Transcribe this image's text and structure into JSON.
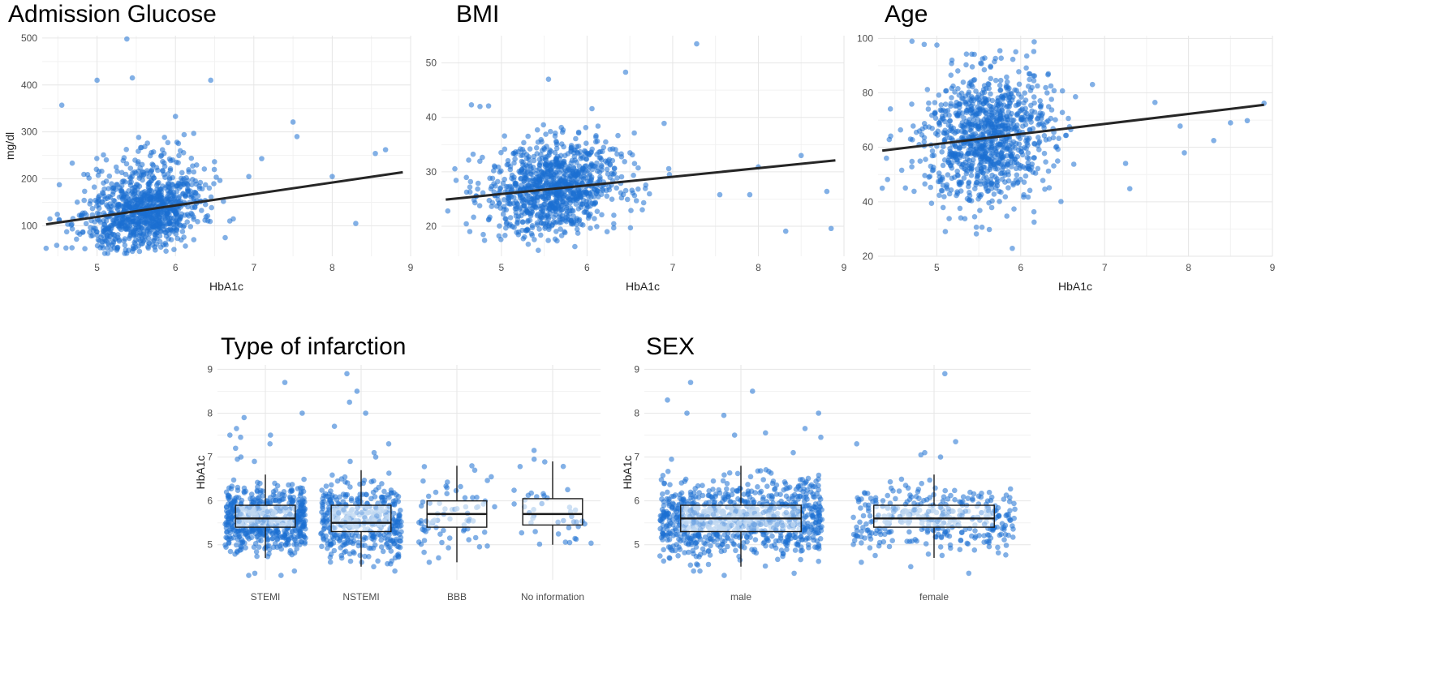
{
  "colors": {
    "point": "#1c6fd1",
    "point_light": "#9fc3ea",
    "fit": "#262626",
    "box": "#1a1a1a"
  },
  "chart_data": [
    {
      "id": "glucose",
      "type": "scatter",
      "title": "Admission Glucose",
      "xlabel": "HbA1c",
      "ylabel": "mg/dl",
      "xlim": [
        4.3,
        9.0
      ],
      "ylim": [
        35,
        505
      ],
      "xticks": [
        5,
        6,
        7,
        8,
        9
      ],
      "yticks": [
        100,
        200,
        300,
        400,
        500
      ],
      "xtick_labels": [
        "5",
        "6",
        "7",
        "8",
        "9"
      ],
      "ytick_labels": [
        "100",
        "200",
        "300",
        "400",
        "500"
      ],
      "fit": {
        "x": [
          4.35,
          8.9
        ],
        "y": [
          103,
          214
        ]
      },
      "cluster": {
        "n": 1000,
        "x_center": 5.6,
        "x_spread": 0.38,
        "y_center": 125,
        "y_spread": 38,
        "y_min": 40
      },
      "outliers": [
        {
          "x": 5.38,
          "y": 498
        },
        {
          "x": 5.45,
          "y": 415
        },
        {
          "x": 5.0,
          "y": 410
        },
        {
          "x": 6.45,
          "y": 410
        },
        {
          "x": 4.55,
          "y": 357
        },
        {
          "x": 7.5,
          "y": 321
        },
        {
          "x": 6.0,
          "y": 333
        },
        {
          "x": 8.68,
          "y": 262
        },
        {
          "x": 8.55,
          "y": 254
        },
        {
          "x": 8.3,
          "y": 105
        },
        {
          "x": 8.0,
          "y": 205
        },
        {
          "x": 7.1,
          "y": 243
        },
        {
          "x": 4.35,
          "y": 52
        },
        {
          "x": 7.55,
          "y": 290
        }
      ]
    },
    {
      "id": "bmi",
      "type": "scatter",
      "title": "BMI",
      "xlabel": "HbA1c",
      "ylabel": "",
      "xlim": [
        4.3,
        9.0
      ],
      "ylim": [
        14.5,
        55
      ],
      "xticks": [
        5,
        6,
        7,
        8,
        9
      ],
      "yticks": [
        20,
        30,
        40,
        50
      ],
      "xtick_labels": [
        "5",
        "6",
        "7",
        "8",
        "9"
      ],
      "ytick_labels": [
        "20",
        "30",
        "40",
        "50"
      ],
      "fit": {
        "x": [
          4.35,
          8.9
        ],
        "y": [
          24.9,
          32.1
        ]
      },
      "cluster": {
        "n": 1000,
        "x_center": 5.6,
        "x_spread": 0.38,
        "y_center": 27,
        "y_spread": 4.2,
        "y_min": 15.5
      },
      "outliers": [
        {
          "x": 7.28,
          "y": 53.5
        },
        {
          "x": 6.45,
          "y": 48.3
        },
        {
          "x": 5.55,
          "y": 47.0
        },
        {
          "x": 4.65,
          "y": 42.3
        },
        {
          "x": 4.75,
          "y": 42.0
        },
        {
          "x": 4.85,
          "y": 42.1
        },
        {
          "x": 8.32,
          "y": 19.1
        },
        {
          "x": 8.85,
          "y": 19.6
        },
        {
          "x": 8.8,
          "y": 26.4
        },
        {
          "x": 8.5,
          "y": 33.0
        },
        {
          "x": 7.55,
          "y": 25.8
        },
        {
          "x": 7.9,
          "y": 25.8
        },
        {
          "x": 8.0,
          "y": 30.9
        },
        {
          "x": 6.9,
          "y": 38.9
        }
      ]
    },
    {
      "id": "age",
      "type": "scatter",
      "title": "Age",
      "xlabel": "HbA1c",
      "ylabel": "",
      "xlim": [
        4.3,
        9.0
      ],
      "ylim": [
        20,
        101
      ],
      "xticks": [
        5,
        6,
        7,
        8,
        9
      ],
      "yticks": [
        20,
        40,
        60,
        80,
        100
      ],
      "xtick_labels": [
        "5",
        "6",
        "7",
        "8",
        "9"
      ],
      "ytick_labels": [
        "20",
        "40",
        "60",
        "80",
        "100"
      ],
      "fit": {
        "x": [
          4.35,
          8.9
        ],
        "y": [
          58.8,
          75.6
        ]
      },
      "cluster": {
        "n": 1000,
        "x_center": 5.6,
        "x_spread": 0.38,
        "y_center": 64,
        "y_spread": 12,
        "y_min": 23
      },
      "outliers": [
        {
          "x": 4.85,
          "y": 97.8
        },
        {
          "x": 8.9,
          "y": 76.2
        },
        {
          "x": 8.7,
          "y": 69.8
        },
        {
          "x": 8.5,
          "y": 69.0
        },
        {
          "x": 8.3,
          "y": 62.5
        },
        {
          "x": 7.95,
          "y": 58.0
        },
        {
          "x": 7.3,
          "y": 44.8
        },
        {
          "x": 7.25,
          "y": 54.1
        },
        {
          "x": 5.9,
          "y": 22.9
        },
        {
          "x": 7.9,
          "y": 67.8
        },
        {
          "x": 7.6,
          "y": 76.5
        },
        {
          "x": 4.4,
          "y": 56.0
        },
        {
          "x": 4.35,
          "y": 45.0
        }
      ]
    },
    {
      "id": "infarction",
      "type": "box",
      "title": "Type of infarction",
      "xlabel": "",
      "ylabel": "HbA1c",
      "ylim": [
        4.2,
        9.1
      ],
      "yticks": [
        5,
        6,
        7,
        8,
        9
      ],
      "ytick_labels": [
        "5",
        "6",
        "7",
        "8",
        "9"
      ],
      "categories": [
        "STEMI",
        "NSTEMI",
        "BBB",
        "No information"
      ],
      "boxes": [
        {
          "q1": 5.4,
          "median": 5.6,
          "q3": 5.9,
          "lower": 4.7,
          "upper": 6.6,
          "n": 620,
          "outliers": [
            8.7,
            8.0,
            7.9,
            7.65,
            7.5,
            7.5,
            7.45,
            7.3,
            7.2,
            7.0,
            6.95,
            6.9,
            4.4,
            4.3,
            4.35,
            4.3
          ]
        },
        {
          "q1": 5.3,
          "median": 5.5,
          "q3": 5.9,
          "lower": 4.5,
          "upper": 6.7,
          "n": 420,
          "outliers": [
            8.9,
            8.5,
            8.25,
            8.0,
            7.7,
            7.3,
            7.1,
            7.0,
            6.9,
            4.4,
            4.5
          ]
        },
        {
          "q1": 5.4,
          "median": 5.7,
          "q3": 6.0,
          "lower": 4.6,
          "upper": 6.8,
          "n": 70,
          "outliers": [
            6.8,
            6.7,
            4.6,
            4.7
          ]
        },
        {
          "q1": 5.45,
          "median": 5.7,
          "q3": 6.05,
          "lower": 5.0,
          "upper": 6.9,
          "n": 40,
          "outliers": [
            7.15,
            6.95,
            5.05
          ]
        }
      ]
    },
    {
      "id": "sex",
      "type": "box",
      "title": "SEX",
      "xlabel": "",
      "ylabel": "HbA1c",
      "ylim": [
        4.2,
        9.1
      ],
      "yticks": [
        5,
        6,
        7,
        8,
        9
      ],
      "ytick_labels": [
        "5",
        "6",
        "7",
        "8",
        "9"
      ],
      "categories": [
        "male",
        "female"
      ],
      "boxes": [
        {
          "q1": 5.3,
          "median": 5.6,
          "q3": 5.9,
          "lower": 4.5,
          "upper": 6.8,
          "n": 900,
          "outliers": [
            8.7,
            8.5,
            8.3,
            8.0,
            8.0,
            7.95,
            7.65,
            7.55,
            7.5,
            7.45,
            7.1,
            6.95,
            4.3,
            4.35,
            4.4,
            4.4
          ]
        },
        {
          "q1": 5.4,
          "median": 5.6,
          "q3": 5.9,
          "lower": 4.7,
          "upper": 6.6,
          "n": 350,
          "outliers": [
            8.9,
            7.35,
            7.3,
            7.1,
            7.05,
            7.0,
            4.6,
            4.5,
            4.35
          ]
        }
      ]
    }
  ]
}
